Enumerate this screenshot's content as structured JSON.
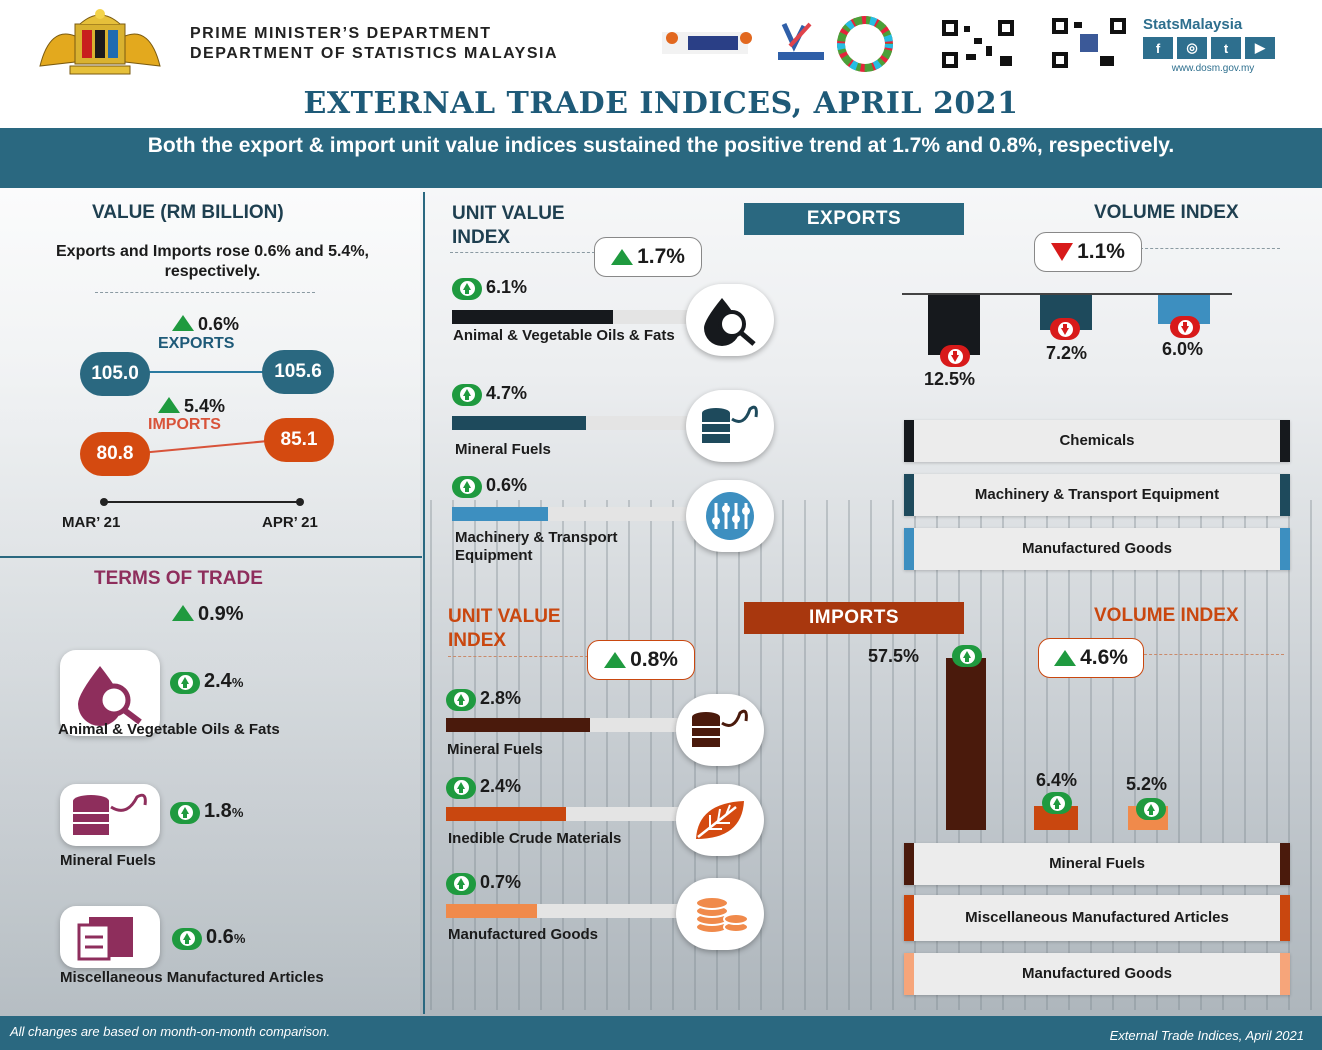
{
  "header": {
    "dept_line1": "PRIME MINISTER’S DEPARTMENT",
    "dept_line2": "DEPARTMENT OF STATISTICS MALAYSIA",
    "social_brand": "StatsMalaysia",
    "social_url": "www.dosm.gov.my"
  },
  "title": "EXTERNAL TRADE INDICES, APRIL 2021",
  "banner": "Both the export & import unit value indices sustained the positive trend at 1.7% and 0.8%, respectively.",
  "value_panel": {
    "title": "VALUE (RM BILLION)",
    "desc": "Exports and Imports rose 0.6% and 5.4%, respectively.",
    "exports_label": "EXPORTS",
    "exports_pct": "0.6%",
    "exports_mar": "105.0",
    "exports_apr": "105.6",
    "imports_label": "IMPORTS",
    "imports_pct": "5.4%",
    "imports_mar": "80.8",
    "imports_apr": "85.1",
    "x_start": "MAR’ 21",
    "x_end": "APR’ 21"
  },
  "terms_of_trade": {
    "title": "TERMS OF TRADE",
    "overall": "0.9%",
    "items": [
      {
        "label": "Animal & Vegetable Oils & Fats",
        "pct": "2.4",
        "unit": "%"
      },
      {
        "label": "Mineral Fuels",
        "pct": "1.8",
        "unit": "%"
      },
      {
        "label": "Miscellaneous Manufactured Articles",
        "pct": "0.6",
        "unit": "%"
      }
    ]
  },
  "exports": {
    "tab": "EXPORTS",
    "uvi_title": "UNIT VALUE INDEX",
    "uvi_overall": "1.7%",
    "uvi_items": [
      {
        "pct": "6.1%",
        "label": "Animal & Vegetable Oils & Fats",
        "fraction": 0.67
      },
      {
        "pct": "4.7%",
        "label": "Mineral Fuels",
        "fraction": 0.56
      },
      {
        "pct": "0.6%",
        "label": "Machinery & Transport Equipment",
        "fraction": 0.4
      }
    ],
    "vol_title": "VOLUME INDEX",
    "vol_overall": "1.1%",
    "vol_items": [
      {
        "pct": "12.5%",
        "value": -12.5,
        "color": "#16191d"
      },
      {
        "pct": "7.2%",
        "value": -7.2,
        "color": "#1e4a5c"
      },
      {
        "pct": "6.0%",
        "value": -6.0,
        "color": "#3d8fc0"
      }
    ],
    "legend": [
      {
        "label": "Chemicals",
        "color": "#16191d"
      },
      {
        "label": "Machinery & Transport Equipment",
        "color": "#1e4a5c"
      },
      {
        "label": "Manufactured Goods",
        "color": "#3d8fc0"
      }
    ]
  },
  "imports": {
    "tab": "IMPORTS",
    "uvi_title": "UNIT VALUE INDEX",
    "uvi_overall": "0.8%",
    "uvi_items": [
      {
        "pct": "2.8%",
        "label": "Mineral Fuels",
        "fraction": 0.6,
        "color": "#4a1a0c"
      },
      {
        "pct": "2.4%",
        "label": "Inedible Crude Materials",
        "fraction": 0.5,
        "color": "#c9470f"
      },
      {
        "pct": "0.7%",
        "label": "Manufactured Goods",
        "fraction": 0.38,
        "color": "#f08a4b"
      }
    ],
    "vol_title": "VOLUME INDEX",
    "vol_overall": "4.6%",
    "vol_items": [
      {
        "pct": "57.5%",
        "value": 57.5,
        "color": "#4a1a0c"
      },
      {
        "pct": "6.4%",
        "value": 6.4,
        "color": "#c9470f"
      },
      {
        "pct": "5.2%",
        "value": 5.2,
        "color": "#f08a4b"
      }
    ],
    "legend": [
      {
        "label": "Mineral Fuels",
        "color": "#4a1a0c"
      },
      {
        "label": "Miscellaneous Manufactured Articles",
        "color": "#c9470f"
      },
      {
        "label": "Manufactured Goods",
        "color": "#f6a57a"
      }
    ]
  },
  "footer": {
    "note": "All changes are based on month-on-month comparison.",
    "source": "External Trade Indices, April 2021"
  }
}
